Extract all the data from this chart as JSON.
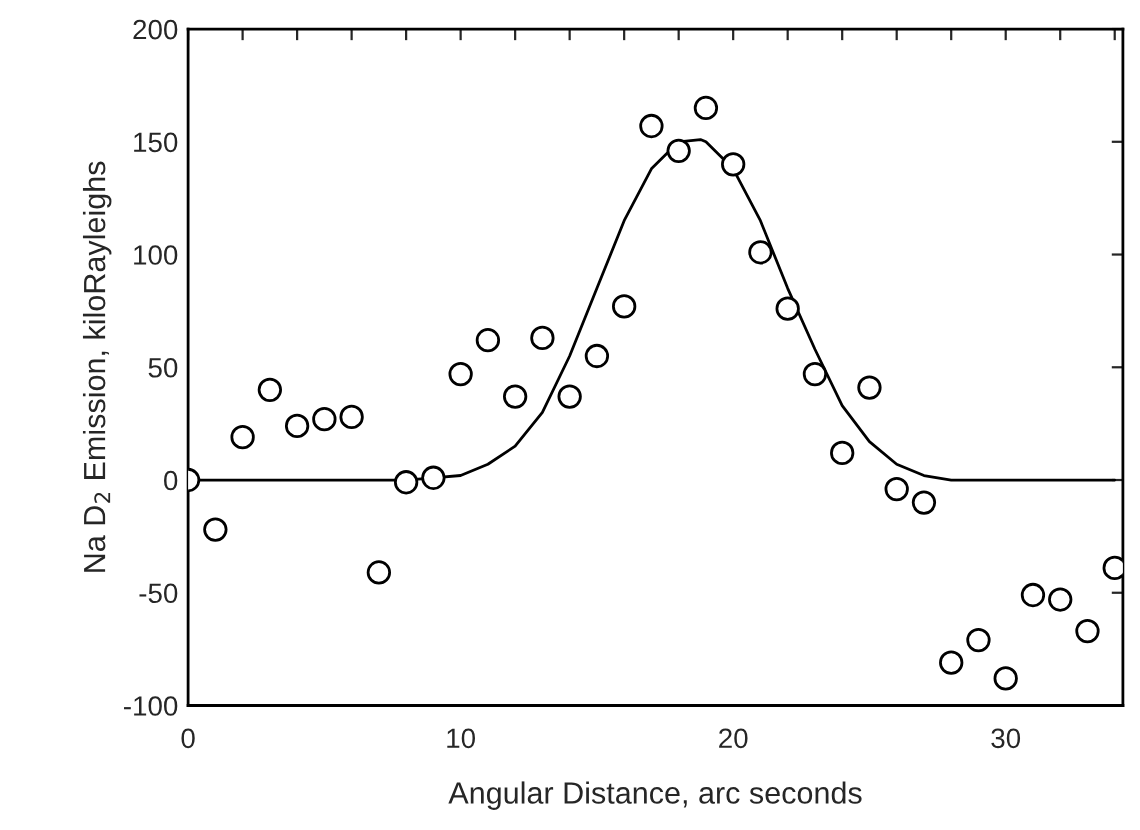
{
  "chart_data": {
    "type": "scatter",
    "xlabel": "Angular Distance, arc seconds",
    "ylabel": "Na D$_{2}$ Emission, kiloRayleighs",
    "series": [
      {
        "color": "#000000",
        "marker": "circle",
        "x": [
          0,
          1,
          2,
          3,
          4,
          5,
          6,
          7,
          8,
          9,
          10,
          11,
          12,
          13,
          14,
          15,
          16,
          17,
          18,
          19,
          20,
          21,
          22,
          23,
          24,
          25,
          26,
          27,
          28,
          29,
          30,
          31,
          32,
          33,
          34
        ],
        "values": [
          0,
          -22,
          19,
          40,
          24,
          27,
          28,
          -41,
          -1,
          1,
          47,
          62,
          37,
          63,
          37,
          55,
          77,
          157,
          146,
          165,
          140,
          101,
          76,
          47,
          12,
          41,
          -4,
          -10,
          -81,
          -71,
          -88,
          -51,
          -53,
          -67,
          -39
        ]
      },
      {
        "type": "line",
        "color": "#000000",
        "marker": "none",
        "x": [
          0,
          8,
          9,
          10,
          11,
          12,
          13,
          14,
          15,
          16,
          17,
          18,
          18.8,
          19,
          20,
          21,
          22,
          23,
          24,
          25,
          26,
          27,
          28,
          34
        ],
        "values": [
          0,
          0,
          1,
          2,
          7,
          15,
          30,
          55,
          85,
          115,
          138,
          150,
          151,
          150,
          138,
          115,
          85,
          58,
          33,
          17,
          7,
          2,
          0,
          0
        ]
      }
    ],
    "xlim": [
      0,
      34.3
    ],
    "ylim": [
      -100,
      200
    ],
    "xticks": [
      0,
      {
        "value": 2,
        "label": null
      },
      {
        "value": 4,
        "label": null
      },
      {
        "value": 6,
        "label": null
      },
      {
        "value": 8,
        "label": null
      },
      10,
      {
        "value": 12,
        "label": null
      },
      {
        "value": 14,
        "label": null
      },
      {
        "value": 16,
        "label": null
      },
      {
        "value": 18,
        "label": null
      },
      20,
      {
        "value": 22,
        "label": null
      },
      {
        "value": 24,
        "label": null
      },
      {
        "value": 26,
        "label": null
      },
      {
        "value": 28,
        "label": null
      },
      30,
      {
        "value": 32,
        "label": null
      },
      {
        "value": 34,
        "label": null
      }
    ],
    "yticks": [
      -100,
      -50,
      0,
      50,
      100,
      150,
      200
    ],
    "grid": false,
    "legend": false
  }
}
